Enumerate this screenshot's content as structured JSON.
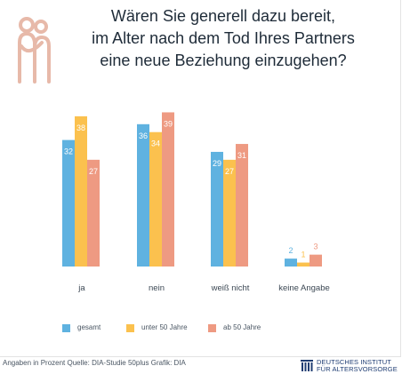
{
  "title_lines": [
    "Wären Sie generell dazu bereit,",
    "im Alter nach dem Tod Ihres Partners",
    "eine neue Beziehung einzugehen?"
  ],
  "footer": {
    "source": "Angaben in Prozent  Quelle: DIA-Studie 50plus  Grafik: DIA",
    "institute_line1": "DEUTSCHES INSTITUT",
    "institute_line2": "FÜR ALTERSVORSORGE"
  },
  "colors": {
    "gesamt": "#5fb2e0",
    "unter50": "#fbc14e",
    "ab50": "#ee9a82",
    "label_on_bar": "#ffffff",
    "institute_blue": "#1f3d73"
  },
  "icons": {
    "logo": "couple-embrace-icon",
    "institute": "institute-pillars-icon"
  },
  "chart_data": {
    "type": "bar",
    "categories": [
      "ja",
      "nein",
      "weiß nicht",
      "keine Angabe"
    ],
    "series": [
      {
        "name": "gesamt",
        "values": [
          32,
          36,
          29,
          2
        ]
      },
      {
        "name": "unter 50 Jahre",
        "values": [
          38,
          34,
          27,
          1
        ]
      },
      {
        "name": "ab 50 Jahre",
        "values": [
          27,
          39,
          31,
          3
        ]
      }
    ],
    "ylim": [
      0,
      40
    ],
    "grid": false,
    "legend_position": "bottom"
  }
}
